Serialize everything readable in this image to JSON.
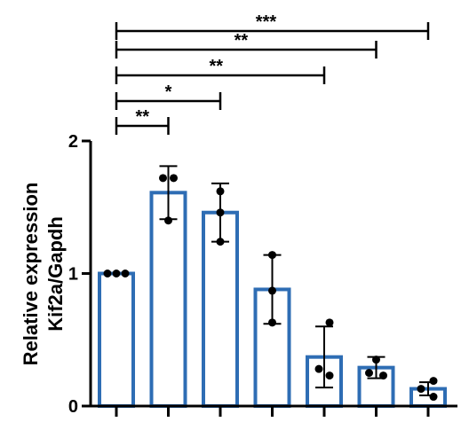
{
  "chart_data": {
    "type": "bar",
    "title": "",
    "xlabel": "",
    "ylabel": "Relative expression Kif2a/Gapdh",
    "ylabel_lines": [
      "Relative expression",
      "Kif2a/Gapdh"
    ],
    "ylim": [
      0,
      2
    ],
    "yticks": [
      0,
      1,
      2
    ],
    "ytick_labels": [
      "0",
      "1",
      "2"
    ],
    "categories": [
      "",
      "",
      "",
      "",
      "",
      "",
      ""
    ],
    "values": [
      1.0,
      1.61,
      1.46,
      0.88,
      0.37,
      0.29,
      0.13
    ],
    "error": [
      0.0,
      0.2,
      0.22,
      0.26,
      0.23,
      0.08,
      0.05
    ],
    "points": [
      [
        1.0,
        1.0,
        1.0
      ],
      [
        1.72,
        1.72,
        1.4
      ],
      [
        1.62,
        1.46,
        1.24
      ],
      [
        1.14,
        0.87,
        0.63
      ],
      [
        0.63,
        0.28,
        0.23
      ],
      [
        0.35,
        0.25,
        0.23
      ],
      [
        0.19,
        0.13,
        0.07
      ]
    ],
    "significance": [
      {
        "from": 0,
        "to": 1,
        "label": "**"
      },
      {
        "from": 0,
        "to": 2,
        "label": "*"
      },
      {
        "from": 0,
        "to": 4,
        "label": "**"
      },
      {
        "from": 0,
        "to": 5,
        "label": "**"
      },
      {
        "from": 0,
        "to": 6,
        "label": "***"
      }
    ],
    "colors": {
      "bar_edge": "#2e6db4",
      "bar_fill": "#ffffff",
      "points": "#000000",
      "axis": "#000000"
    },
    "grid": false
  }
}
